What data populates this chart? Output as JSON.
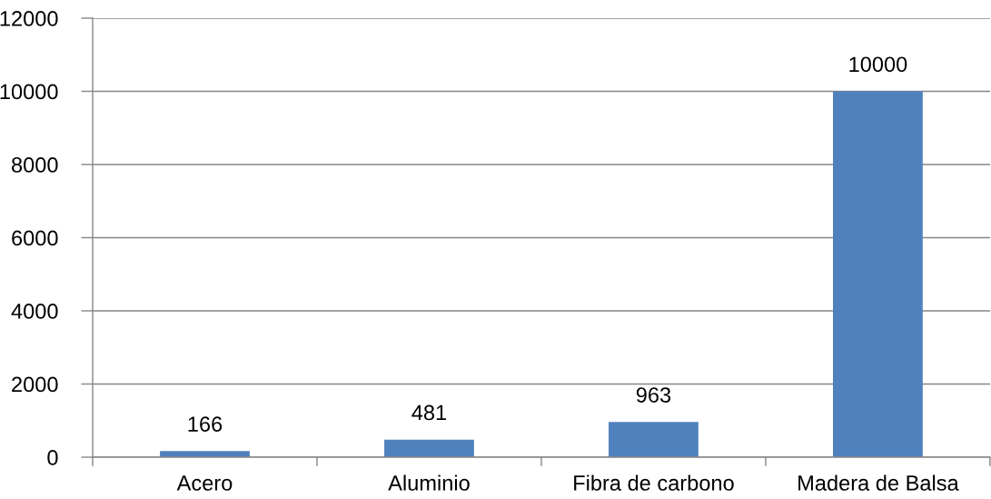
{
  "chart_data": {
    "type": "bar",
    "categories": [
      "Acero",
      "Aluminio",
      "Fibra de carbono",
      "Madera de Balsa"
    ],
    "values": [
      166,
      481,
      963,
      10000
    ],
    "color": "#4f81bd",
    "ylim": [
      0,
      12000
    ],
    "yticks": [
      0,
      2000,
      4000,
      6000,
      8000,
      10000,
      12000
    ],
    "grid": "y",
    "data_labels": true
  }
}
